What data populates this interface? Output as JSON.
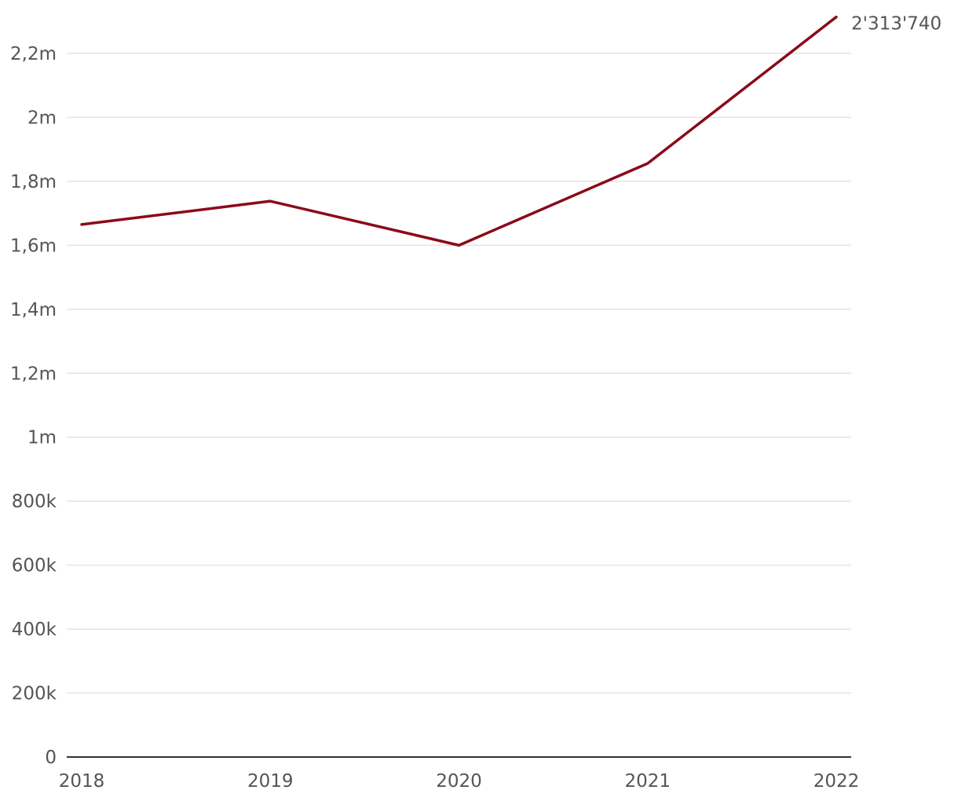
{
  "chart_data": {
    "type": "line",
    "title": "",
    "xlabel": "",
    "ylabel": "",
    "x": [
      "2018",
      "2019",
      "2020",
      "2021",
      "2022"
    ],
    "series": [
      {
        "values": [
          1665000,
          1738000,
          1600000,
          1856000,
          2313740
        ],
        "color": "#8b0a1a"
      }
    ],
    "ylim": [
      0,
      2400000
    ],
    "yticks": [
      0,
      200000,
      400000,
      600000,
      800000,
      1000000,
      1200000,
      1400000,
      1600000,
      1800000,
      2000000,
      2200000
    ],
    "ytick_labels": [
      "0",
      "200k",
      "400k",
      "600k",
      "800k",
      "1m",
      "1,2m",
      "1,4m",
      "1,6m",
      "1,8m",
      "2m",
      "2,2m"
    ],
    "end_label": "2'313'740",
    "grid": true,
    "legend": "none",
    "colors": {
      "grid": "#e3e3e3",
      "baseline": "#333333",
      "text": "#555555"
    }
  }
}
